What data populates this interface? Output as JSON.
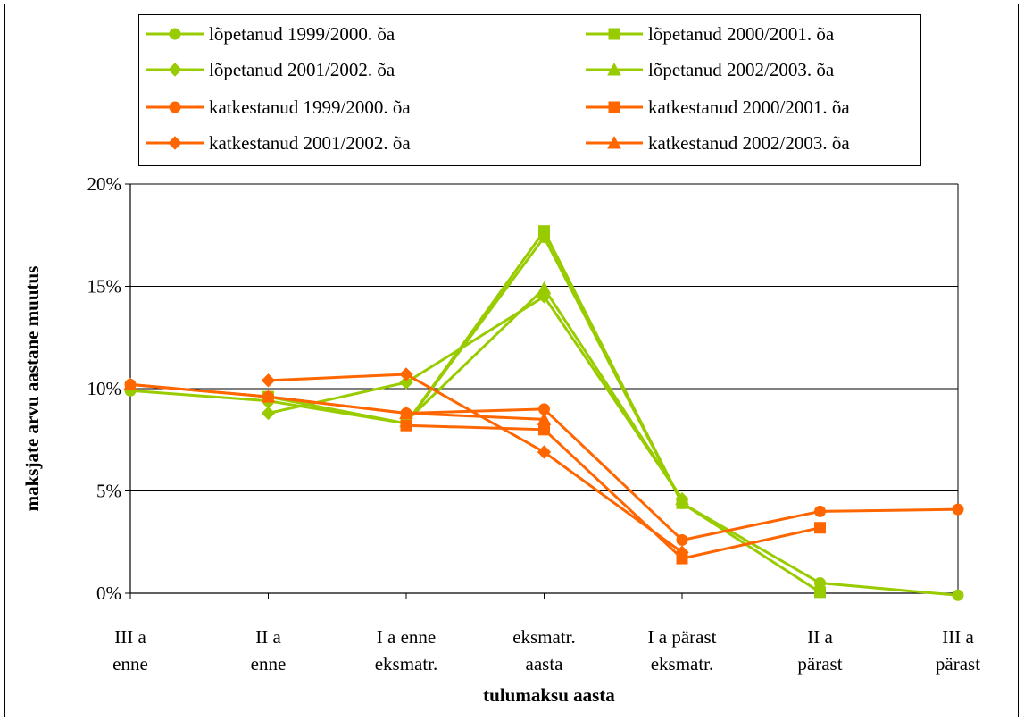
{
  "chart_data": {
    "type": "line",
    "xlabel": "tulumaksu aasta",
    "ylabel": "maksjate arvu aastane muutus",
    "ylim": [
      0,
      0.2
    ],
    "yticks": [
      "0%",
      "5%",
      "10%",
      "15%",
      "20%"
    ],
    "ytick_values": [
      0,
      0.05,
      0.1,
      0.15,
      0.2
    ],
    "grid": true,
    "legend_position": "top",
    "categories": [
      [
        "III a",
        "enne"
      ],
      [
        "II a",
        "enne"
      ],
      [
        "I a enne",
        "eksmatr."
      ],
      [
        "eksmatr.",
        "aasta"
      ],
      [
        "I a pärast",
        "eksmatr."
      ],
      [
        "II a",
        "pärast"
      ],
      [
        "III a",
        "pärast"
      ]
    ],
    "series": [
      {
        "name": "lõpetanud 1999/2000. õa",
        "color": "#99CC00",
        "marker": "circle",
        "values": [
          0.099,
          0.094,
          0.083,
          0.174,
          0.044,
          0.005,
          -0.001
        ]
      },
      {
        "name": "lõpetanud 2000/2001. õa",
        "color": "#99CC00",
        "marker": "square",
        "values": [
          null,
          0.096,
          0.083,
          0.177,
          0.044,
          0.0005,
          null
        ]
      },
      {
        "name": "lõpetanud 2001/2002. õa",
        "color": "#99CC00",
        "marker": "diamond",
        "values": [
          null,
          0.088,
          0.103,
          0.145,
          0.046,
          null,
          null
        ]
      },
      {
        "name": "lõpetanud 2002/2003. õa",
        "color": "#99CC00",
        "marker": "triangle",
        "values": [
          null,
          null,
          0.084,
          0.149,
          0.046,
          null,
          null
        ]
      },
      {
        "name": "katkestanud 1999/2000. õa",
        "color": "#FF6600",
        "marker": "circle",
        "values": [
          0.102,
          0.096,
          0.088,
          0.09,
          0.026,
          0.04,
          0.041
        ]
      },
      {
        "name": "katkestanud 2000/2001. õa",
        "color": "#FF6600",
        "marker": "square",
        "values": [
          null,
          null,
          0.082,
          0.08,
          0.017,
          0.032,
          null
        ]
      },
      {
        "name": "katkestanud 2001/2002. õa",
        "color": "#FF6600",
        "marker": "diamond",
        "values": [
          null,
          0.104,
          0.107,
          0.069,
          0.02,
          null,
          null
        ]
      },
      {
        "name": "katkestanud 2002/2003. õa",
        "color": "#FF6600",
        "marker": "triangle",
        "values": [
          0.102,
          0.096,
          0.088,
          0.085,
          null,
          null,
          null
        ]
      }
    ]
  }
}
